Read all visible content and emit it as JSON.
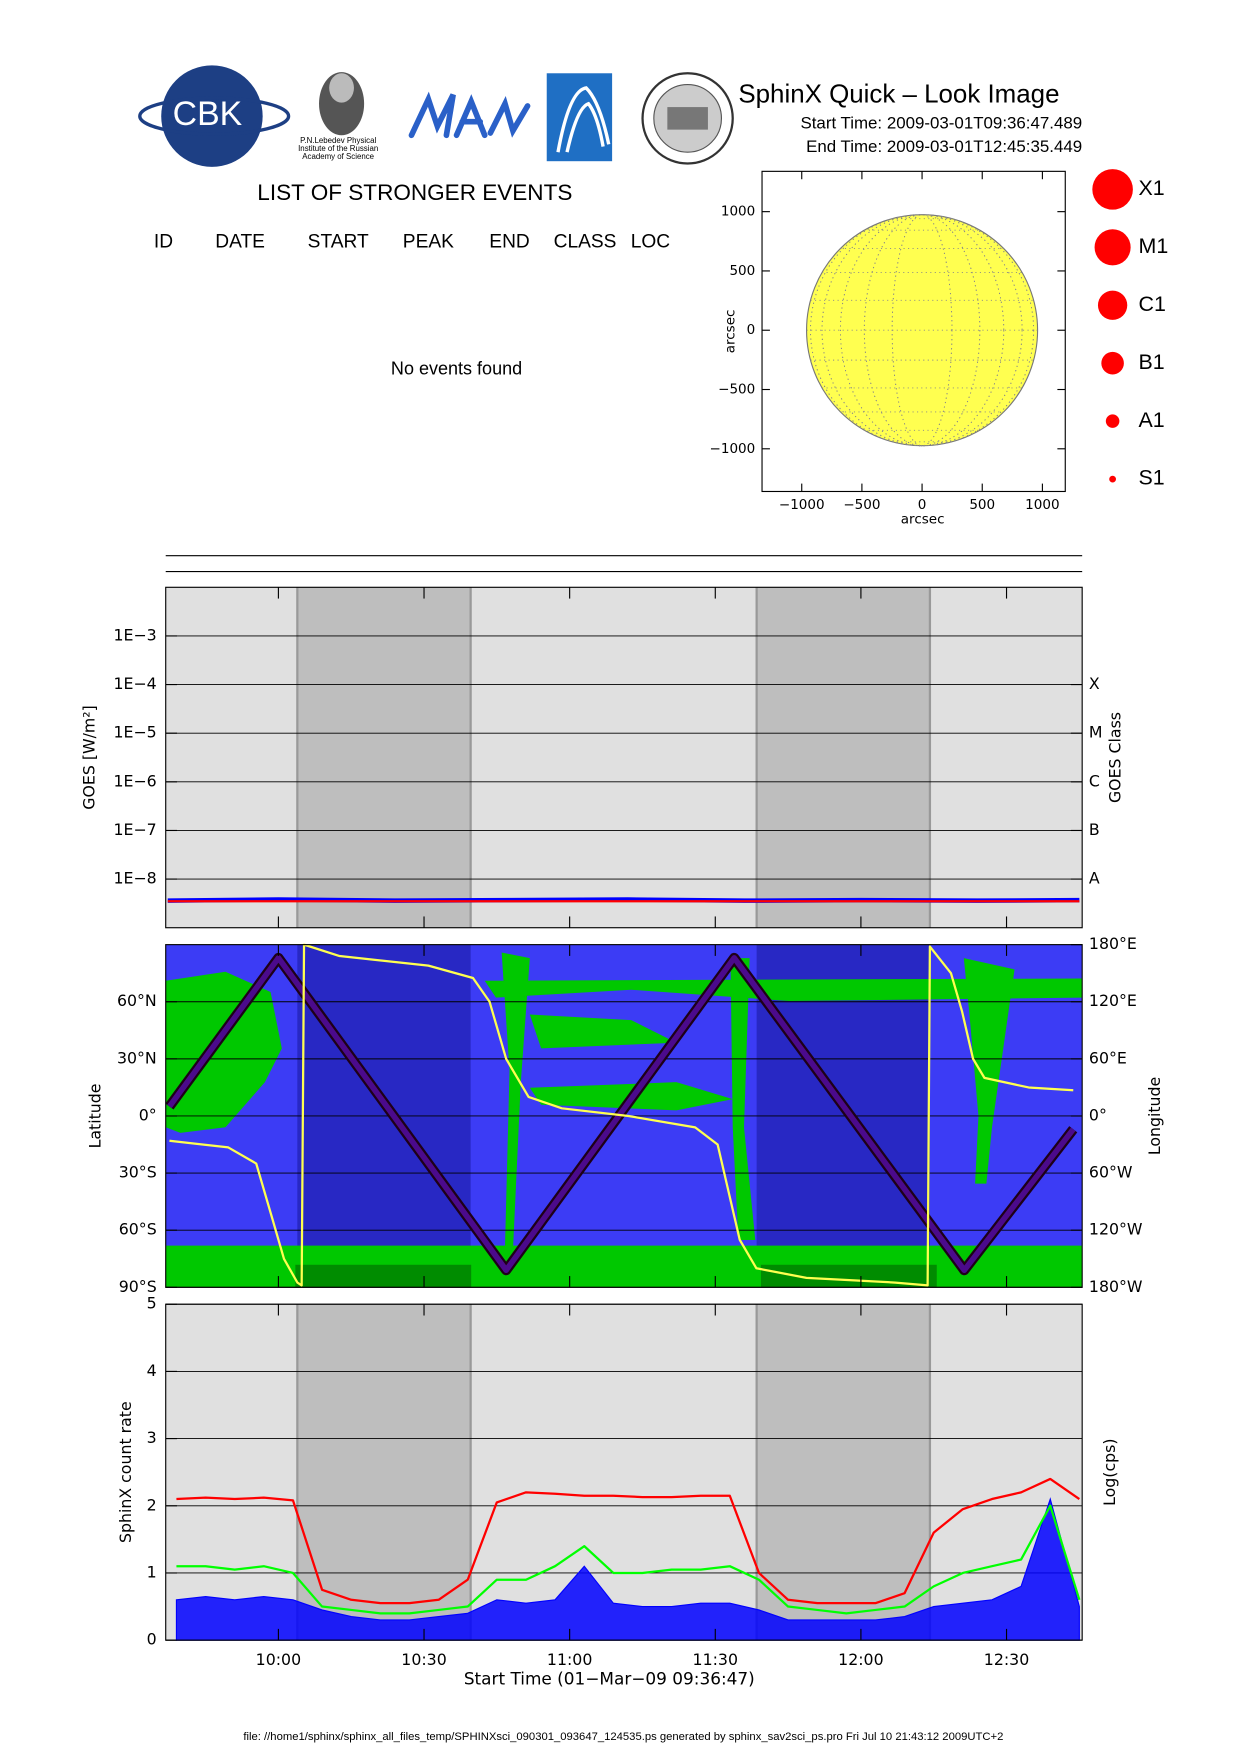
{
  "header": {
    "title": "SphinX Quick – Look Image",
    "start_time": "Start Time: 2009-03-01T09:36:47.489",
    "end_time": "End Time: 2009-03-01T12:45:35.449"
  },
  "logos": {
    "cbk": "CBK",
    "lebedev": [
      "P.N.Lebedev Physical",
      "Institute of the Russian",
      "Academy of Science"
    ]
  },
  "events_list": {
    "title": "LIST OF STRONGER EVENTS",
    "columns": [
      "ID",
      "DATE",
      "START",
      "PEAK",
      "END",
      "CLASS",
      "LOC"
    ],
    "message": "No events found"
  },
  "flare_classes": [
    "X1",
    "M1",
    "C1",
    "B1",
    "A1",
    "S1"
  ],
  "footer": "file: //home1/sphinx/sphinx_all_files_temp/SPHINXsci_090301_093647_124535.ps generated by sphinx_sav2sci_ps.pro Fri Jul 10 21:43:12 2009UTC+2",
  "chart_data": [
    {
      "type": "sun",
      "xlabel": "arcsec",
      "ylabel": "arcsec",
      "xlim": [
        -1330,
        1190
      ],
      "ylim": [
        -1360,
        1340
      ],
      "xticks": [
        {
          "value": -1000,
          "label": "−1000"
        },
        {
          "value": -500,
          "label": "−500"
        },
        0,
        500,
        1000
      ],
      "yticks": [
        {
          "value": -1000,
          "label": "−1000"
        },
        {
          "value": -500,
          "label": "−500"
        },
        0,
        500,
        1000
      ],
      "sun_radius": 960,
      "color": "#ffff50"
    },
    {
      "type": "line",
      "log_y": true,
      "ylabel": "GOES [W/m²]",
      "y2label": "GOES Class",
      "xlim": [
        9.6131,
        12.7597
      ],
      "xticks": [
        10,
        10.5,
        11,
        11.5,
        12,
        12.5
      ],
      "ylim": [
        1e-09,
        0.01
      ],
      "yticks": [
        {
          "value": 0.001,
          "label": "1E−3"
        },
        {
          "value": 0.0001,
          "label": "1E−4"
        },
        {
          "value": 1e-05,
          "label": "1E−5"
        },
        {
          "value": 1e-06,
          "label": "1E−6"
        },
        {
          "value": 1e-07,
          "label": "1E−7"
        },
        {
          "value": 1e-08,
          "label": "1E−8"
        }
      ],
      "class_ticks": [
        {
          "value": 0.0001,
          "label": "X"
        },
        {
          "value": 1e-05,
          "label": "M"
        },
        {
          "value": 1e-06,
          "label": "C"
        },
        {
          "value": 1e-07,
          "label": "B"
        },
        {
          "value": 1e-08,
          "label": "A"
        }
      ],
      "grid": true,
      "background": "#e0e0e0",
      "shade_color": "#bebebe",
      "shaded": [
        [
          10.065,
          10.66
        ],
        [
          11.642,
          12.237
        ]
      ],
      "x": [
        9.62,
        10.0,
        10.4,
        10.8,
        11.2,
        11.6,
        12.0,
        12.4,
        12.75
      ],
      "series": [
        {
          "color": "#0000ff",
          "width": 4,
          "values": [
            3.6e-09,
            3.8e-09,
            3.6e-09,
            3.7e-09,
            3.8e-09,
            3.6e-09,
            3.7e-09,
            3.6e-09,
            3.7e-09
          ]
        },
        {
          "color": "#ff0000",
          "width": 2,
          "values": [
            3.5e-09,
            3.5e-09,
            3.5e-09,
            3.5e-09,
            3.5e-09,
            3.5e-09,
            3.5e-09,
            3.5e-09,
            3.5e-09
          ]
        }
      ]
    },
    {
      "type": "orbit",
      "ylabel": "Latitude",
      "y2label": "Longitude",
      "xlim": [
        9.6131,
        12.7597
      ],
      "xticks": [
        10,
        10.5,
        11,
        11.5,
        12,
        12.5
      ],
      "ylim": [
        -90,
        90
      ],
      "yticks": [
        {
          "value": -90,
          "label": "90°S"
        },
        {
          "value": -60,
          "label": "60°S"
        },
        {
          "value": -30,
          "label": "30°S"
        },
        {
          "value": 0,
          "label": "0°"
        },
        {
          "value": 30,
          "label": "30°N"
        },
        {
          "value": 60,
          "label": "60°N"
        }
      ],
      "y2lim": [
        -180,
        180
      ],
      "y2ticks": [
        {
          "value": -180,
          "label": "180°W"
        },
        {
          "value": -120,
          "label": "120°W"
        },
        {
          "value": -60,
          "label": "60°W"
        },
        {
          "value": 0,
          "label": "0°"
        },
        {
          "value": 60,
          "label": "60°E"
        },
        {
          "value": 120,
          "label": "120°E"
        },
        {
          "value": 180,
          "label": "180°E"
        }
      ],
      "grid": true,
      "background": "#3c3cf5",
      "shade_color": "#2828c4",
      "shaded": [
        [
          10.065,
          10.66
        ],
        [
          11.642,
          12.237
        ]
      ],
      "series": [
        {
          "color": "#4b0a8c",
          "outline": "#1e0018",
          "width": 5,
          "x": [
            9.626,
            10.0,
            10.782,
            11.565,
            12.355,
            12.729
          ],
          "values": [
            5,
            83,
            -81,
            83,
            -81,
            -7
          ]
        },
        {
          "color": "#ffff50",
          "width": 2,
          "axis": "y2",
          "x": [
            9.626,
            9.828,
            9.924,
            9.981,
            10.019,
            10.065,
            10.08,
            10.088,
            10.21,
            10.515,
            10.668,
            10.725,
            10.782,
            10.859,
            10.973,
            11.202,
            11.431,
            11.508,
            11.546,
            11.584,
            11.641,
            11.813,
            12.118,
            12.229,
            12.237,
            12.309,
            12.347,
            12.385,
            12.424,
            12.576,
            12.729
          ],
          "values": [
            -26,
            -33,
            -50,
            -110,
            -150,
            -175,
            -178,
            180,
            168,
            158,
            145,
            120,
            60,
            20,
            8,
            0,
            -12,
            -30,
            -80,
            -130,
            -160,
            -170,
            -175,
            -178,
            178,
            150,
            110,
            60,
            40,
            30,
            27
          ]
        }
      ]
    },
    {
      "type": "line",
      "ylabel": "SphinX count rate",
      "y2label": "Log(cps)",
      "xlabel": "Start Time (01−Mar−09 09:36:47)",
      "xlim": [
        9.6131,
        12.7597
      ],
      "xticks": [
        {
          "value": 10,
          "label": "10:00"
        },
        {
          "value": 10.5,
          "label": "10:30"
        },
        {
          "value": 11,
          "label": "11:00"
        },
        {
          "value": 11.5,
          "label": "11:30"
        },
        {
          "value": 12,
          "label": "12:00"
        },
        {
          "value": 12.5,
          "label": "12:30"
        }
      ],
      "ylim": [
        0,
        5
      ],
      "yticks": [
        0,
        1,
        2,
        3,
        4,
        5
      ],
      "grid": true,
      "background": "#e0e0e0",
      "shade_color": "#bebebe",
      "shaded": [
        [
          10.065,
          10.66
        ],
        [
          11.642,
          12.237
        ]
      ],
      "x": [
        9.65,
        9.75,
        9.85,
        9.95,
        10.05,
        10.15,
        10.25,
        10.35,
        10.45,
        10.55,
        10.65,
        10.75,
        10.85,
        10.95,
        11.05,
        11.15,
        11.25,
        11.35,
        11.45,
        11.55,
        11.65,
        11.75,
        11.85,
        11.95,
        12.05,
        12.15,
        12.25,
        12.35,
        12.45,
        12.55,
        12.65,
        12.75
      ],
      "series": [
        {
          "color": "#0000ff",
          "area": true,
          "width": 1,
          "values": [
            0.6,
            0.65,
            0.6,
            0.65,
            0.6,
            0.45,
            0.35,
            0.3,
            0.3,
            0.35,
            0.4,
            0.6,
            0.55,
            0.6,
            1.1,
            0.55,
            0.5,
            0.5,
            0.55,
            0.55,
            0.45,
            0.3,
            0.3,
            0.3,
            0.3,
            0.35,
            0.5,
            0.55,
            0.6,
            0.8,
            2.1,
            0.5
          ]
        },
        {
          "color": "#00ff00",
          "width": 2,
          "values": [
            1.1,
            1.1,
            1.05,
            1.1,
            1.0,
            0.5,
            0.45,
            0.4,
            0.4,
            0.45,
            0.5,
            0.9,
            0.9,
            1.1,
            1.4,
            1.0,
            1.0,
            1.05,
            1.05,
            1.1,
            0.9,
            0.5,
            0.45,
            0.4,
            0.45,
            0.5,
            0.8,
            1.0,
            1.1,
            1.2,
            2.0,
            0.6
          ]
        },
        {
          "color": "#ff0000",
          "width": 2,
          "values": [
            2.1,
            2.12,
            2.1,
            2.12,
            2.08,
            0.75,
            0.6,
            0.55,
            0.55,
            0.6,
            0.9,
            2.05,
            2.2,
            2.18,
            2.15,
            2.15,
            2.13,
            2.13,
            2.15,
            2.15,
            1.0,
            0.6,
            0.55,
            0.55,
            0.55,
            0.7,
            1.6,
            1.95,
            2.1,
            2.2,
            2.4,
            2.1
          ]
        }
      ]
    }
  ]
}
